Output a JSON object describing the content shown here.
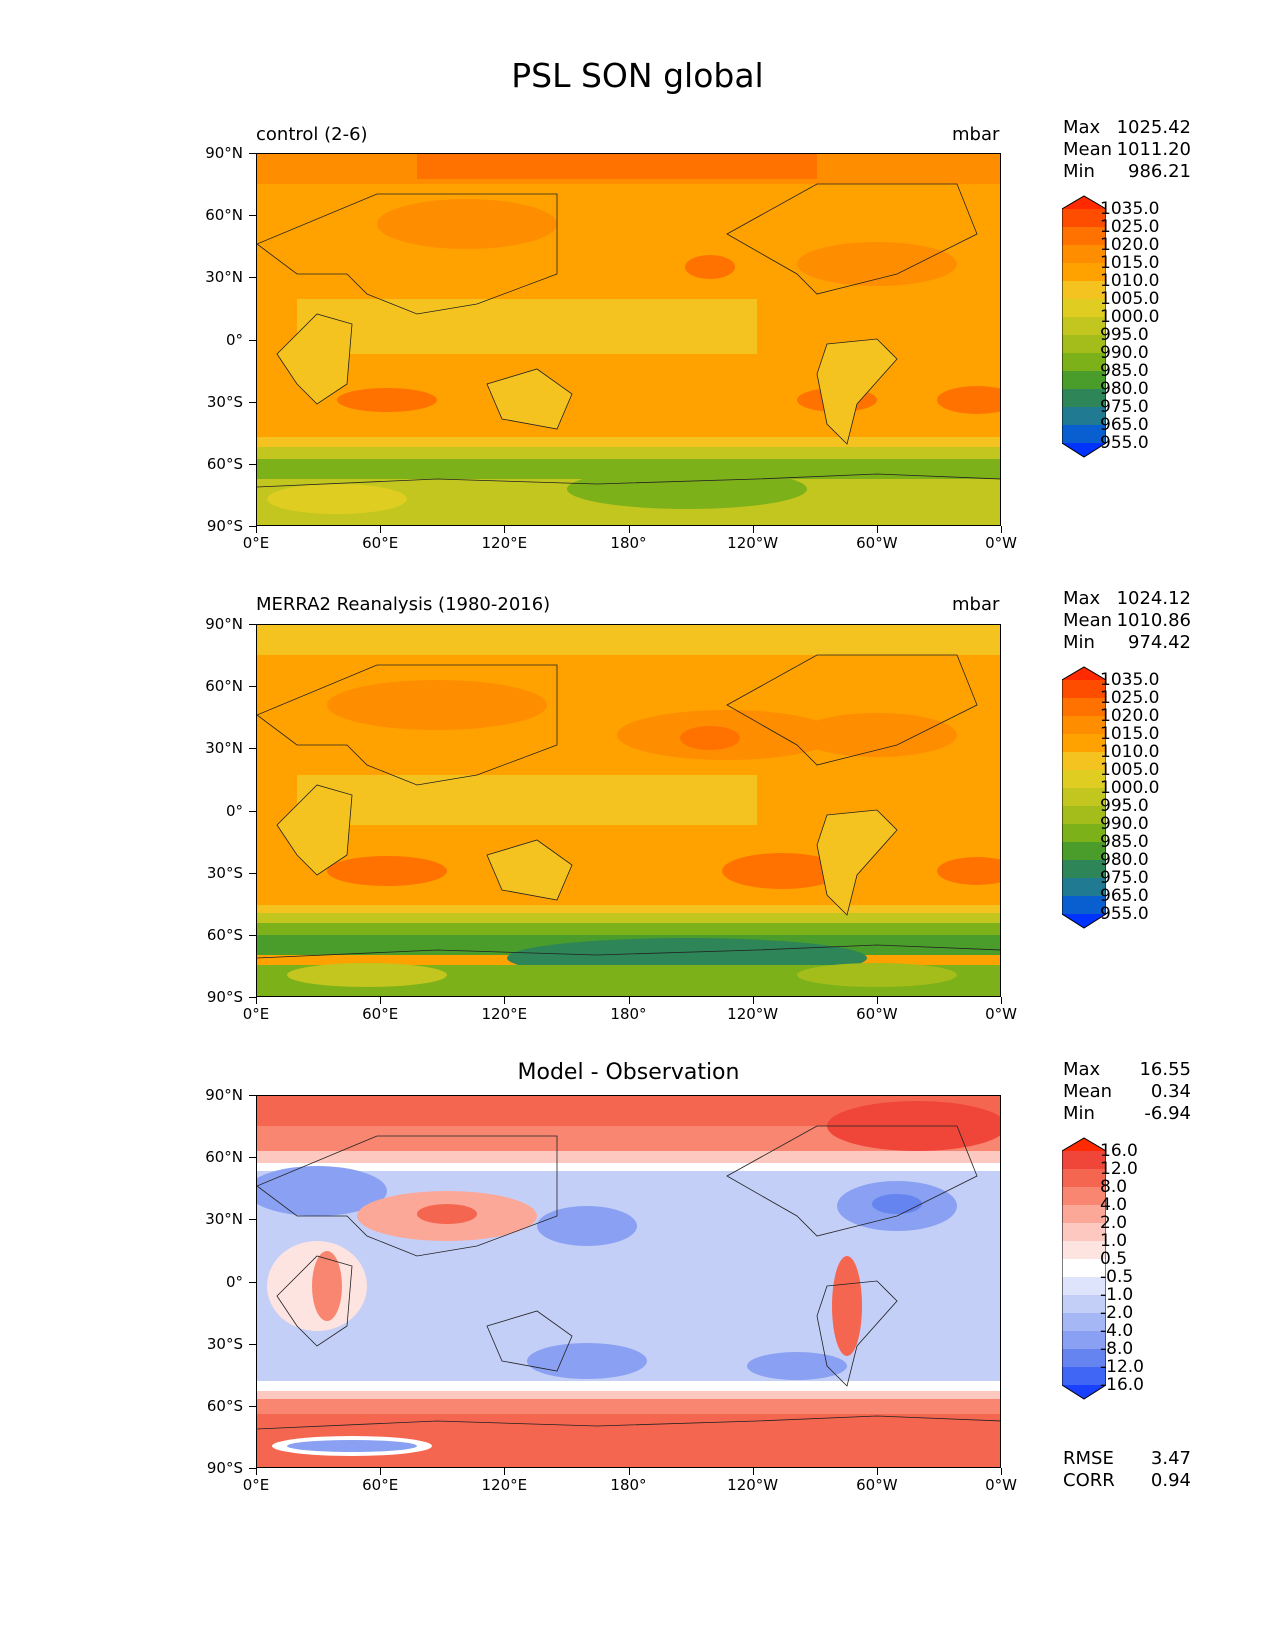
{
  "figure": {
    "title": "PSL SON global"
  },
  "axes": {
    "lat_ticks": [
      "90°N",
      "60°N",
      "30°N",
      "0°",
      "30°S",
      "60°S",
      "90°S"
    ],
    "lon_ticks": [
      "0°E",
      "60°E",
      "120°E",
      "180°",
      "120°W",
      "60°W",
      "0°W"
    ]
  },
  "panels": [
    {
      "title_left": "control (2-6)",
      "units": "mbar",
      "stats": {
        "max_label": "Max",
        "max": "1025.42",
        "mean_label": "Mean",
        "mean": "1011.20",
        "min_label": "Min",
        "min": "986.21"
      },
      "colorbar": {
        "labels": [
          "1035.0",
          "1025.0",
          "1020.0",
          "1015.0",
          "1010.0",
          "1005.0",
          "1000.0",
          "995.0",
          "990.0",
          "985.0",
          "980.0",
          "975.0",
          "965.0",
          "955.0"
        ],
        "colors": [
          "#ff2a00",
          "#ff4d00",
          "#ff7200",
          "#ff8d00",
          "#ffa200",
          "#f5c320",
          "#e0cd22",
          "#c2c61e",
          "#a4bd1a",
          "#7cb11a",
          "#4a9d2a",
          "#2d8558",
          "#1f7a92",
          "#0a5fd0",
          "#0033ff"
        ]
      }
    },
    {
      "title_left": "MERRA2 Reanalysis (1980-2016)",
      "units": "mbar",
      "stats": {
        "max_label": "Max",
        "max": "1024.12",
        "mean_label": "Mean",
        "mean": "1010.86",
        "min_label": "Min",
        "min": "974.42"
      },
      "colorbar": {
        "labels": [
          "1035.0",
          "1025.0",
          "1020.0",
          "1015.0",
          "1010.0",
          "1005.0",
          "1000.0",
          "995.0",
          "990.0",
          "985.0",
          "980.0",
          "975.0",
          "965.0",
          "955.0"
        ],
        "colors": [
          "#ff2a00",
          "#ff4d00",
          "#ff7200",
          "#ff8d00",
          "#ffa200",
          "#f5c320",
          "#e0cd22",
          "#c2c61e",
          "#a4bd1a",
          "#7cb11a",
          "#4a9d2a",
          "#2d8558",
          "#1f7a92",
          "#0a5fd0",
          "#0033ff"
        ]
      }
    },
    {
      "title_center": "Model - Observation",
      "stats": {
        "max_label": "Max",
        "max": "16.55",
        "mean_label": "Mean",
        "mean": "0.34",
        "min_label": "Min",
        "min": "-6.94"
      },
      "colorbar": {
        "labels": [
          "16.0",
          "12.0",
          "8.0",
          "4.0",
          "2.0",
          "1.0",
          "0.5",
          "-0.5",
          "-1.0",
          "-2.0",
          "-4.0",
          "-8.0",
          "-12.0",
          "-16.0"
        ],
        "colors": [
          "#ff2a00",
          "#f0463a",
          "#f56650",
          "#f98670",
          "#fca898",
          "#fdc8bf",
          "#fde4e0",
          "#ffffff",
          "#dde4fb",
          "#c4cff8",
          "#a6b7f5",
          "#8aa0f2",
          "#6684ef",
          "#4066f5",
          "#1a40ff"
        ]
      },
      "rmse_label": "RMSE",
      "rmse": "3.47",
      "corr_label": "CORR",
      "corr": "0.94"
    }
  ]
}
